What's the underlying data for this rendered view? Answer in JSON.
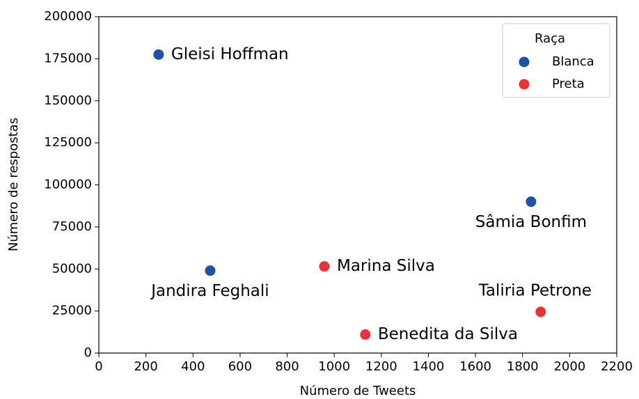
{
  "chart_data": {
    "type": "scatter",
    "xlabel": "Número de Tweets",
    "ylabel": "Número de respostas",
    "legend_title": "Raça",
    "legend": "upper right",
    "series": [
      {
        "name": "Blanca",
        "color": "#2052a3",
        "x": [
          254,
          1836,
          473
        ],
        "values": [
          177500,
          90000,
          49000
        ],
        "labels": [
          "Gleisi Hoffman",
          "Sâmia Bonfim",
          "Jandira Feghali"
        ]
      },
      {
        "name": "Preta",
        "color": "#e8333a",
        "x": [
          958,
          1132,
          1877
        ],
        "values": [
          51500,
          11000,
          24500
        ],
        "labels": [
          "Marina Silva",
          "Benedita da Silva",
          "Taliria Petrone"
        ]
      }
    ],
    "xlim": [
      0,
      2200
    ],
    "xticks": [
      0,
      200,
      400,
      600,
      800,
      1000,
      1200,
      1400,
      1600,
      1800,
      2000,
      2200
    ],
    "ylim": [
      0,
      200000
    ],
    "yticks": [
      0,
      25000,
      50000,
      75000,
      100000,
      125000,
      150000,
      175000,
      200000
    ]
  }
}
